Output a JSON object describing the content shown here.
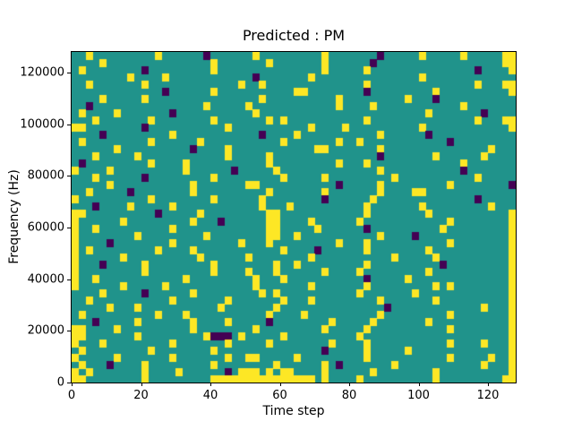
{
  "chart_data": {
    "type": "heatmap",
    "title": "Predicted : PM",
    "xlabel": "Time step",
    "ylabel": "Frequency (Hz)",
    "x_range": [
      0,
      128
    ],
    "y_range": [
      0,
      128000
    ],
    "x_ticks": [
      0,
      20,
      40,
      60,
      80,
      100,
      120
    ],
    "y_ticks": [
      0,
      20000,
      40000,
      60000,
      80000,
      100000,
      120000
    ],
    "colormap": "viridis",
    "legend": "none",
    "grid": false,
    "colors": {
      "mid": "#20938b",
      "high": "#fde725",
      "low": "#440154"
    },
    "cell_legend": {
      ".": "mid (background)",
      "y": "high (yellow)",
      "p": "low (dark purple)"
    },
    "grid_cols": 64,
    "grid_rows": 46,
    "rows_top_to_bottom": [
      [
        "..y.....",
        "....y...",
        "...p....",
        "..y.....",
        "....y...",
        "....p...",
        "..y.....",
        "y.....yy"
      ],
      [
        "....y...",
        "........",
        "....y...",
        "....y...",
        "....y...",
        "...p....",
        "........",
        "......yy"
      ],
      [
        ".y......",
        "..p.....",
        "....y...",
        "........",
        "....y...",
        "..y.....",
        "........",
        "..p....y"
      ],
      [
        "........",
        "y....y..",
        "........",
        "..p.....",
        "..y.....",
        "........",
        "..y.....",
        "........"
      ],
      [
        "..y.....",
        "..y.....",
        "........",
        "y..y....",
        "........",
        "..y.....",
        "........",
        "..y...yy"
      ],
      [
        "........",
        ".....p..",
        "....y...",
        "........",
        "yy......",
        "..p.....",
        "....y...",
        ".......y"
      ],
      [
        "....y...",
        "..y.....",
        "........",
        "...y....",
        "......y.",
        "........",
        "y...p...",
        "........"
      ],
      [
        "..p.....",
        "........",
        "...y....",
        ".y......",
        "......y.",
        "...y....",
        "........",
        "y......."
      ],
      [
        ".y....y.",
        "......p.",
        "........",
        "..y.....",
        "........",
        "........",
        "...y....",
        "...p...."
      ],
      [
        "...y....",
        "...y....",
        "....y...",
        "....y.y.",
        "........",
        "..y.....",
        "........",
        "..y...yy"
      ],
      [
        "yy......",
        "..p.....",
        "......y.",
        "........",
        "..y....y",
        "........",
        "..y.....",
        ".......y"
      ],
      [
        "....p...",
        "......y.",
        "........",
        "...p....",
        "y.......",
        "....y...",
        "...p....",
        "........"
      ],
      [
        ".y......",
        "...y....",
        "..y.....",
        "......y.",
        "......y.",
        ".y......",
        "......p.",
        "........"
      ],
      [
        "......y.",
        "........",
        ".p....y.",
        "........",
        "...yy...",
        "....y...",
        "........",
        "....y..."
      ],
      [
        "...y....",
        ".y......",
        "......y.",
        "....y...",
        "........",
        "....p...",
        "....y...",
        "...y...."
      ],
      [
        ".p......",
        "...y....",
        "y.......",
        "....y...",
        "......y.",
        "..y.....",
        "........",
        "y......."
      ],
      [
        "y....y..",
        "........",
        "y......p",
        ".....y..",
        "........",
        "....y...",
        "........",
        "p......."
      ],
      [
        "...y....",
        "..p.....",
        "....y...",
        "......y.",
        "....y...",
        "......y.",
        "........",
        "..y....."
      ],
      [
        ".....y..",
        "........",
        ".y......",
        ".yy.....",
        "......p.",
        "....y...",
        "......y.",
        ".......p"
      ],
      [
        "..y.....",
        "p.......",
        ".y......",
        "....y...",
        "....y...",
        "....y...",
        ".yy.....",
        "........"
      ],
      [
        "y.......",
        "...y....",
        "....y...",
        "...y....",
        "....p...",
        "...y....",
        "........",
        "..p....."
      ],
      [
        "...p....",
        "y.....y.",
        "........",
        "...y...y",
        "........",
        "..y.....",
        "..y.....",
        "....y..."
      ],
      [
        "yy......",
        "....p...",
        "..y.....",
        "....yy..",
        "........",
        "..y.....",
        "...y....",
        ".......y"
      ],
      [
        "y......y",
        "........",
        ".y...p..",
        "....yy..",
        "..y.....",
        ".y......",
        "......y.",
        ".......y"
      ],
      [
        "y..y....",
        "......y.",
        "........",
        "....yy..",
        "...y....",
        "..p.....",
        ".....y..",
        ".......y"
      ],
      [
        "y.......",
        ".y......",
        "...y....",
        "....yy..",
        "y.......",
        "....y...",
        ".p......",
        ".......y"
      ],
      [
        "y....p..",
        "......y.",
        "........",
        "y...y...",
        "......y.",
        "..y.....",
        "......y.",
        ".......y"
      ],
      [
        "y.y.....",
        "....y...",
        ".y......",
        "......y.",
        "...p....",
        "..y.....",
        "...y....",
        ".......y"
      ],
      [
        "y......y",
        "........",
        "..y.....",
        ".y......",
        "..y.....",
        "......y.",
        "....y...",
        ".......y"
      ],
      [
        "y...p...",
        "..y.....",
        "....y...",
        ".....y..",
        "y.......",
        "..y.....",
        ".....p..",
        ".......y"
      ],
      [
        "y.......",
        "..y.....",
        "....y...",
        ".y...y..",
        "....y...",
        ".y......",
        "...y....",
        ".......y"
      ],
      [
        "y..y....",
        "........",
        "y.......",
        "..y...y.",
        "........",
        "..p.....",
        "y.......",
        ".......y"
      ],
      [
        "y......y",
        ".....y..",
        "........",
        "..y.....",
        "..y.....",
        "..y.....",
        "....y.y.",
        ".......y"
      ],
      [
        "....y...",
        "..p.....",
        ".y......",
        "...y.y..",
        "........",
        ".y......",
        ".y......",
        ".......y"
      ],
      [
        "..y.....",
        "......y.",
        "......y.",
        "......y.",
        "..y.....",
        "....y...",
        "....y...",
        ".......y"
      ],
      [
        ".....y..",
        ".y......",
        ".....y..",
        ".....y..",
        "........",
        ".....p..",
        "........",
        "...y...y"
      ],
      [
        ".y......",
        "....y...",
        "y.......",
        "....y...",
        ".y......",
        "....y...",
        "......y.",
        ".......y"
      ],
      [
        "...p....",
        ".y......",
        ".y....y.",
        "....p...",
        ".....y..",
        "...y....",
        "...y....",
        ".......y"
      ],
      [
        "yy....y.",
        "........",
        ".y......",
        "..y.....",
        "....y...",
        "..y.....",
        "......y.",
        ".......y"
      ],
      [
        "yy......",
        ".y......",
        "...yppp.",
        "y.....y.",
        "........",
        ".y......",
        "........",
        ".......y"
      ],
      [
        "y...y...",
        "......y.",
        "......y.",
        "....y...",
        ".....y..",
        "..y.....",
        "......y.",
        "...y...y"
      ],
      [
        ".y......",
        "...y....",
        "....y...",
        "........",
        "....p...",
        "..y.....",
        "y.......",
        ".......y"
      ],
      [
        "y.....y.",
        "......y.",
        "......y.",
        ".yy.....",
        "y.......",
        "..y.....",
        "......y.",
        "....y..y"
      ],
      [
        ".y...p..",
        "..y.....",
        "....y...",
        ".....y..",
        "....y.p.",
        "......y.",
        "........",
        "...y...y"
      ],
      [
        "y.y.....",
        "..y....y",
        "......p.",
        "yyy.y.yy",
        "....y...",
        "...y....",
        "....y...",
        ".......y"
      ],
      [
        "yy......",
        "..y.....",
        "....yyyy",
        "yyyyyyyy",
        "yyy.y...",
        ".y......",
        "....y...",
        "......yy"
      ]
    ]
  }
}
